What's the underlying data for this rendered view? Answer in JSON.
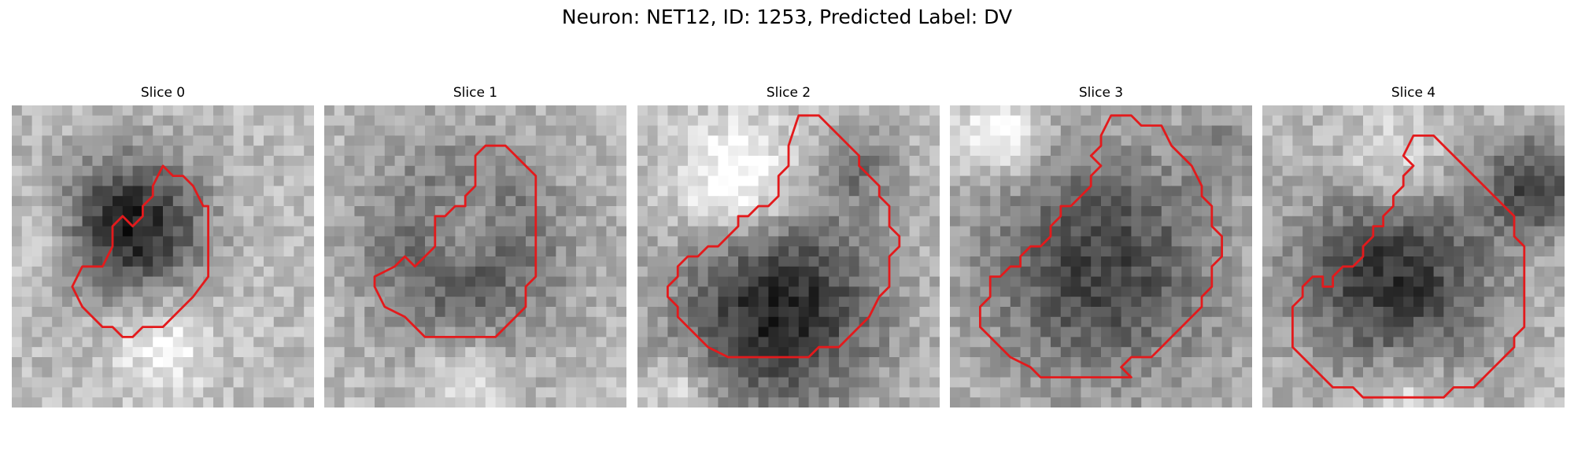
{
  "figure": {
    "title": "Neuron: NET12, ID: 1253, Predicted Label: DV"
  },
  "panels": [
    {
      "title": "Slice 0"
    },
    {
      "title": "Slice 1"
    },
    {
      "title": "Slice 2"
    },
    {
      "title": "Slice 3"
    },
    {
      "title": "Slice 4"
    }
  ],
  "colors": {
    "contour": "#e31a1c",
    "dark_cell": "#1a1a1a",
    "light_bg": "#e8e8e8"
  }
}
